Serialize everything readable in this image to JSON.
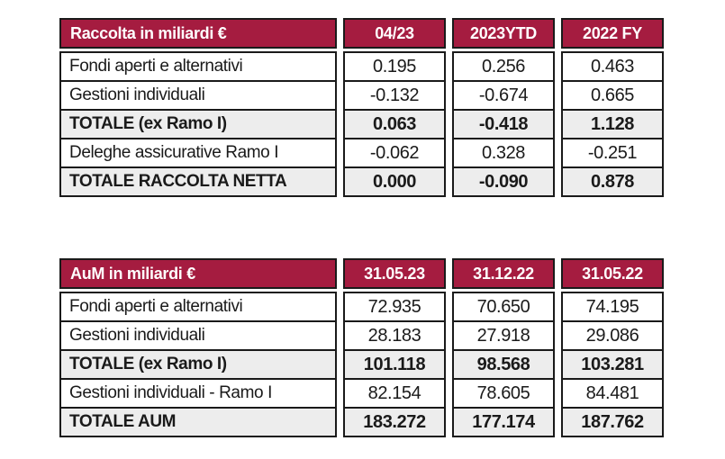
{
  "colors": {
    "header_bg": "#a51c40",
    "header_text": "#ffffff",
    "row_total_bg": "#ededed",
    "border": "#1a1a1a",
    "text": "#1a1a1a"
  },
  "tables": [
    {
      "header": {
        "label": "Raccolta in miliardi €",
        "columns": [
          "04/23",
          "2023YTD",
          "2022 FY"
        ]
      },
      "rows": [
        {
          "label": "Fondi aperti e alternativi",
          "values": [
            "0.195",
            "0.256",
            "0.463"
          ]
        },
        {
          "label": "Gestioni individuali",
          "values": [
            "-0.132",
            "-0.674",
            "0.665"
          ]
        },
        {
          "label": "TOTALE (ex Ramo I)",
          "values": [
            "0.063",
            "-0.418",
            "1.128"
          ]
        },
        {
          "label": "Deleghe assicurative Ramo I",
          "values": [
            "-0.062",
            "0.328",
            "-0.251"
          ]
        },
        {
          "label": "TOTALE RACCOLTA NETTA",
          "values": [
            "0.000",
            "-0.090",
            "0.878"
          ]
        }
      ]
    },
    {
      "header": {
        "label": "AuM in miliardi €",
        "columns": [
          "31.05.23",
          "31.12.22",
          "31.05.22"
        ]
      },
      "rows": [
        {
          "label": "Fondi aperti e alternativi",
          "values": [
            "72.935",
            "70.650",
            "74.195"
          ]
        },
        {
          "label": "Gestioni individuali",
          "values": [
            "28.183",
            "27.918",
            "29.086"
          ]
        },
        {
          "label": "TOTALE (ex Ramo I)",
          "values": [
            "101.118",
            "98.568",
            "103.281"
          ]
        },
        {
          "label": "Gestioni individuali - Ramo I",
          "values": [
            "82.154",
            "78.605",
            "84.481"
          ]
        },
        {
          "label": "TOTALE AUM",
          "values": [
            "183.272",
            "177.174",
            "187.762"
          ]
        }
      ]
    }
  ]
}
